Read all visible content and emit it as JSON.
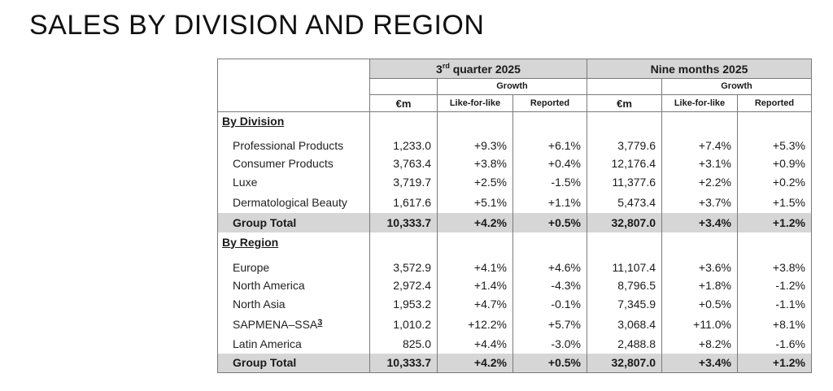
{
  "title": "SALES BY DIVISION AND REGION",
  "header": {
    "q3_prefix": "3",
    "q3_sup": "rd",
    "q3_suffix": " quarter 2025",
    "nine_months": "Nine months 2025",
    "growth": "Growth",
    "unit": "€m",
    "lfl": "Like-for-like",
    "reported": "Reported"
  },
  "by_division": {
    "heading": "By Division",
    "rows": [
      {
        "label": "Professional Products",
        "q3_value": "1,233.0",
        "q3_lfl": "+9.3%",
        "q3_rep": "+6.1%",
        "nm_value": "3,779.6",
        "nm_lfl": "+7.4%",
        "nm_rep": "+5.3%"
      },
      {
        "label": "Consumer Products",
        "q3_value": "3,763.4",
        "q3_lfl": "+3.8%",
        "q3_rep": "+0.4%",
        "nm_value": "12,176.4",
        "nm_lfl": "+3.1%",
        "nm_rep": "+0.9%"
      },
      {
        "label": "Luxe",
        "q3_value": "3,719.7",
        "q3_lfl": "+2.5%",
        "q3_rep": "-1.5%",
        "nm_value": "11,377.6",
        "nm_lfl": "+2.2%",
        "nm_rep": "+0.2%"
      },
      {
        "label": "Dermatological Beauty",
        "q3_value": "1,617.6",
        "q3_lfl": "+5.1%",
        "q3_rep": "+1.1%",
        "nm_value": "5,473.4",
        "nm_lfl": "+3.7%",
        "nm_rep": "+1.5%"
      }
    ],
    "total": {
      "label": "Group Total",
      "q3_value": "10,333.7",
      "q3_lfl": "+4.2%",
      "q3_rep": "+0.5%",
      "nm_value": "32,807.0",
      "nm_lfl": "+3.4%",
      "nm_rep": "+1.2%"
    }
  },
  "by_region": {
    "heading": "By Region",
    "rows": [
      {
        "label": "Europe",
        "q3_value": "3,572.9",
        "q3_lfl": "+4.1%",
        "q3_rep": "+4.6%",
        "nm_value": "11,107.4",
        "nm_lfl": "+3.6%",
        "nm_rep": "+3.8%"
      },
      {
        "label": "North America",
        "q3_value": "2,972.4",
        "q3_lfl": "+1.4%",
        "q3_rep": "-4.3%",
        "nm_value": "8,796.5",
        "nm_lfl": "+1.8%",
        "nm_rep": "-1.2%"
      },
      {
        "label": "North Asia",
        "q3_value": "1,953.2",
        "q3_lfl": "+4.7%",
        "q3_rep": "-0.1%",
        "nm_value": "7,345.9",
        "nm_lfl": "+0.5%",
        "nm_rep": "-1.1%"
      },
      {
        "label": "SAPMENA–SSA",
        "footnote": "3",
        "q3_value": "1,010.2",
        "q3_lfl": "+12.2%",
        "q3_rep": "+5.7%",
        "nm_value": "3,068.4",
        "nm_lfl": "+11.0%",
        "nm_rep": "+8.1%"
      },
      {
        "label": "Latin America",
        "q3_value": "825.0",
        "q3_lfl": "+4.4%",
        "q3_rep": "-3.0%",
        "nm_value": "2,488.8",
        "nm_lfl": "+8.2%",
        "nm_rep": "-1.6%"
      }
    ],
    "total": {
      "label": "Group Total",
      "q3_value": "10,333.7",
      "q3_lfl": "+4.2%",
      "q3_rep": "+0.5%",
      "nm_value": "32,807.0",
      "nm_lfl": "+3.4%",
      "nm_rep": "+1.2%"
    }
  }
}
